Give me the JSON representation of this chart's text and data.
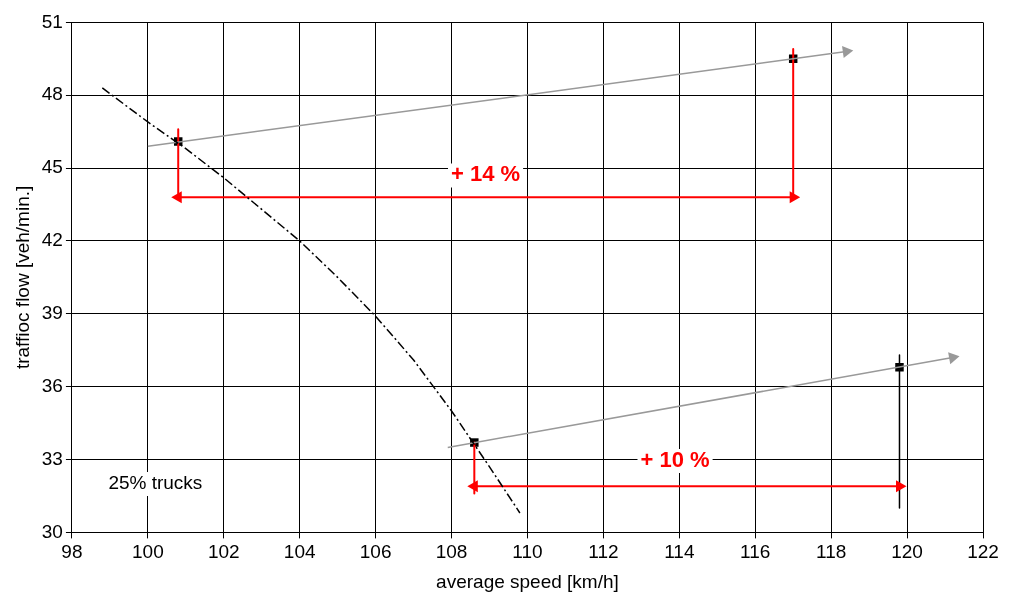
{
  "chart_data": {
    "type": "scatter",
    "xlabel": "average speed [km/h]",
    "ylabel": "traffioc flow [veh/min.]",
    "xlim": [
      98,
      122
    ],
    "xticks": [
      98,
      100,
      102,
      104,
      106,
      108,
      110,
      112,
      114,
      116,
      118,
      120,
      122
    ],
    "ylim": [
      30,
      51
    ],
    "yticks": [
      30,
      33,
      36,
      39,
      42,
      45,
      48,
      51
    ],
    "grid": true,
    "legend": false,
    "annotations": [
      "+ 14 %",
      "+ 10 %",
      "25% trucks"
    ],
    "series": [
      {
        "type": "line",
        "color": "#000000",
        "line_style": "dashed",
        "x": [
          98.8,
          100,
          101,
          102,
          103,
          104,
          105,
          106,
          107,
          108,
          109,
          109.8
        ],
        "values": [
          48.3,
          46.9,
          45.8,
          44.6,
          43.3,
          42.0,
          40.5,
          38.9,
          37.1,
          35.0,
          32.7,
          30.8
        ]
      },
      {
        "type": "line",
        "color": "#999999",
        "marker": "triangle",
        "x": [
          100,
          118.4
        ],
        "values": [
          45.9,
          49.8
        ]
      },
      {
        "type": "line",
        "color": "#999999",
        "marker": "triangle",
        "x": [
          107.9,
          121.2
        ],
        "values": [
          33.5,
          37.2
        ]
      },
      {
        "type": "line",
        "color": "#ff0000",
        "marker": "triangle",
        "x": [
          100.8,
          108.9,
          117
        ],
        "values": [
          43.8,
          43.8,
          43.8
        ]
      },
      {
        "type": "line",
        "color": "#ff0000",
        "marker": "triangle",
        "x": [
          108.6,
          114.2,
          119.8
        ],
        "values": [
          31.9,
          31.9,
          31.9
        ]
      },
      {
        "type": "line",
        "color": "#ff0000",
        "x": [
          100.8,
          100.8
        ],
        "values": [
          46.6,
          43.8
        ]
      },
      {
        "type": "line",
        "color": "#ff0000",
        "x": [
          117,
          117
        ],
        "values": [
          49.9,
          43.8
        ]
      },
      {
        "type": "line",
        "color": "#ff0000",
        "x": [
          108.6,
          108.6
        ],
        "values": [
          33.7,
          31.6
        ]
      },
      {
        "type": "line",
        "color": "#000000",
        "x": [
          119.8,
          119.8
        ],
        "values": [
          37.3,
          31.0
        ]
      },
      {
        "type": "scatter",
        "color": "#000000",
        "marker": "square",
        "x": [
          100.8,
          117,
          108.6,
          119.8
        ],
        "values": [
          46.1,
          49.5,
          33.7,
          36.8
        ]
      }
    ]
  }
}
